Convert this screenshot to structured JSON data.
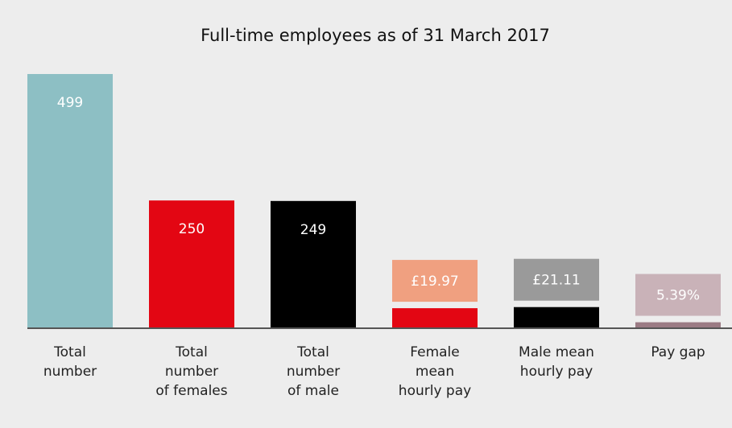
{
  "chart_data": {
    "type": "bar",
    "title": "Full-time employees as of 31 March 2017",
    "categories": [
      [
        "Total",
        "number"
      ],
      [
        "Total",
        "number",
        "of females"
      ],
      [
        "Total",
        "number",
        "of male"
      ],
      [
        "Female",
        "mean",
        "hourly pay"
      ],
      [
        "Male mean",
        "hourly pay"
      ],
      [
        "Pay gap"
      ]
    ],
    "ylim": [
      0,
      499
    ],
    "y2lim": [
      0,
      263
    ],
    "series": [
      {
        "values": [
          499,
          250,
          249,
          null,
          null,
          null
        ],
        "colors": [
          "#8dbfc4",
          "#e30613",
          "#000000",
          null,
          null,
          null
        ]
      },
      {
        "axis": "y2",
        "values": [
          null,
          null,
          null,
          19.97,
          21.11,
          5.39
        ],
        "value_labels": [
          null,
          null,
          null,
          "£19.97",
          "£21.11",
          "5.39%"
        ],
        "colors": [
          null,
          null,
          null,
          "#e30613",
          "#000000",
          "#9b7b84"
        ],
        "label_colors": [
          null,
          null,
          null,
          "#f0a080",
          "#9a9a9a",
          "#c9b2b8"
        ]
      }
    ]
  }
}
